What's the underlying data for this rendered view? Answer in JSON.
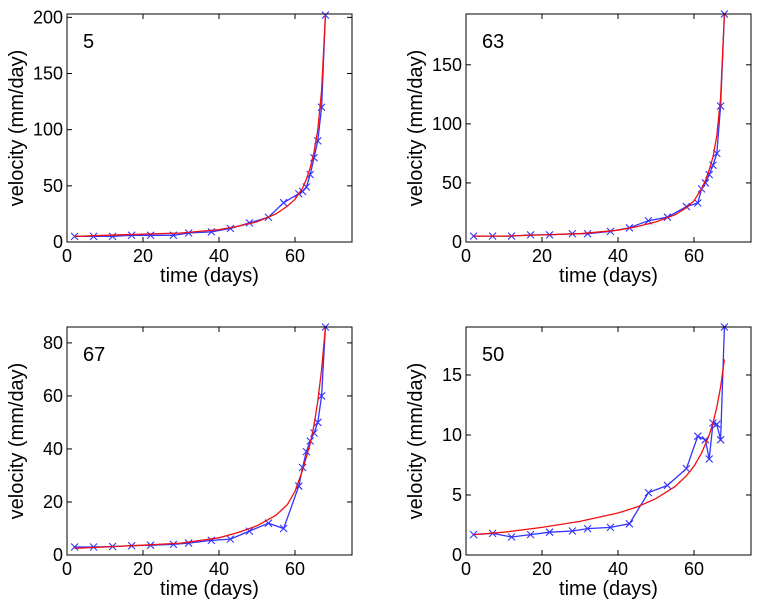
{
  "figure": {
    "colors": {
      "observed": "#3333ff",
      "fit": "#ee1111",
      "axes": "#000000"
    }
  },
  "chart_data": [
    {
      "type": "line",
      "panel_label": "5",
      "xlabel": "time (days)",
      "ylabel": "velocity (mm/day)",
      "xlim": [
        0,
        75
      ],
      "ylim": [
        0,
        203
      ],
      "xticks": [
        0,
        20,
        40,
        60
      ],
      "yticks": [
        0,
        50,
        100,
        150,
        200
      ],
      "series": [
        {
          "marker": "x",
          "x": [
            2,
            7,
            12,
            17,
            22,
            28,
            32,
            38,
            43,
            48,
            53,
            57,
            61,
            62,
            63,
            64,
            65,
            66,
            67,
            68
          ],
          "y": [
            5,
            5,
            5,
            6,
            6,
            6,
            8,
            9,
            12,
            17,
            22,
            35,
            43,
            45,
            49,
            60,
            75,
            90,
            120,
            202
          ]
        },
        {
          "marker": "none",
          "x": [
            2,
            10,
            20,
            30,
            40,
            45,
            50,
            55,
            58,
            60,
            62,
            63,
            64,
            65,
            66,
            67,
            68
          ],
          "y": [
            5,
            6,
            7,
            8,
            11,
            14,
            18,
            25,
            32,
            38,
            48,
            56,
            66,
            80,
            100,
            135,
            202
          ]
        }
      ]
    },
    {
      "type": "line",
      "panel_label": "63",
      "xlabel": "time (days)",
      "ylabel": "velocity (mm/day)",
      "xlim": [
        0,
        75
      ],
      "ylim": [
        0,
        193
      ],
      "xticks": [
        0,
        20,
        40,
        60
      ],
      "yticks": [
        0,
        50,
        100,
        150
      ],
      "series": [
        {
          "marker": "x",
          "x": [
            2,
            7,
            12,
            17,
            22,
            28,
            32,
            38,
            43,
            48,
            53,
            58,
            61,
            62,
            63,
            64,
            65,
            66,
            67,
            68
          ],
          "y": [
            5,
            5,
            5,
            6,
            6,
            7,
            7,
            9,
            12,
            18,
            21,
            30,
            33,
            45,
            50,
            57,
            65,
            75,
            115,
            193
          ]
        },
        {
          "marker": "none",
          "x": [
            2,
            10,
            20,
            30,
            40,
            45,
            50,
            55,
            58,
            60,
            62,
            63,
            64,
            65,
            66,
            67,
            68
          ],
          "y": [
            5,
            5,
            6,
            7,
            10,
            13,
            17,
            23,
            29,
            35,
            45,
            52,
            61,
            72,
            90,
            122,
            193
          ]
        }
      ]
    },
    {
      "type": "line",
      "panel_label": "67",
      "xlabel": "time (days)",
      "ylabel": "velocity (mm/day)",
      "xlim": [
        0,
        75
      ],
      "ylim": [
        0,
        86
      ],
      "xticks": [
        0,
        20,
        40,
        60
      ],
      "yticks": [
        0,
        20,
        40,
        60,
        80
      ],
      "series": [
        {
          "marker": "x",
          "x": [
            2,
            7,
            12,
            17,
            22,
            28,
            32,
            38,
            43,
            48,
            53,
            57,
            61,
            62,
            63,
            64,
            65,
            66,
            67,
            68
          ],
          "y": [
            3,
            3,
            3.2,
            3.5,
            3.7,
            4,
            4.5,
            5.5,
            6,
            9,
            12,
            10,
            26,
            33,
            39,
            43,
            46,
            50,
            60,
            86
          ]
        },
        {
          "marker": "none",
          "x": [
            2,
            10,
            20,
            30,
            40,
            45,
            50,
            55,
            58,
            60,
            62,
            64,
            65,
            66,
            67,
            68
          ],
          "y": [
            2.5,
            3,
            3.7,
            4.5,
            6.5,
            8.5,
            11,
            15,
            19,
            24,
            32,
            42,
            49,
            58,
            70,
            86
          ]
        }
      ]
    },
    {
      "type": "line",
      "panel_label": "50",
      "xlabel": "time (days)",
      "ylabel": "velocity (mm/day)",
      "xlim": [
        0,
        75
      ],
      "ylim": [
        0,
        19
      ],
      "xticks": [
        0,
        20,
        40,
        60
      ],
      "yticks": [
        0,
        5,
        10,
        15
      ],
      "series": [
        {
          "marker": "x",
          "x": [
            2,
            7,
            12,
            17,
            22,
            28,
            32,
            38,
            43,
            48,
            53,
            58,
            61,
            63,
            64,
            65,
            66,
            67,
            68
          ],
          "y": [
            1.7,
            1.8,
            1.5,
            1.7,
            1.9,
            2.0,
            2.2,
            2.3,
            2.6,
            5.2,
            5.8,
            7.2,
            9.9,
            9.6,
            8.0,
            11.0,
            10.9,
            9.6,
            19.0
          ]
        },
        {
          "marker": "none",
          "x": [
            2,
            10,
            20,
            30,
            40,
            45,
            50,
            55,
            58,
            60,
            62,
            64,
            65,
            66,
            67,
            68
          ],
          "y": [
            1.7,
            1.9,
            2.3,
            2.8,
            3.5,
            4.0,
            4.7,
            5.7,
            6.6,
            7.4,
            8.5,
            10.0,
            11.0,
            12.3,
            14.0,
            16.3
          ]
        }
      ]
    }
  ]
}
